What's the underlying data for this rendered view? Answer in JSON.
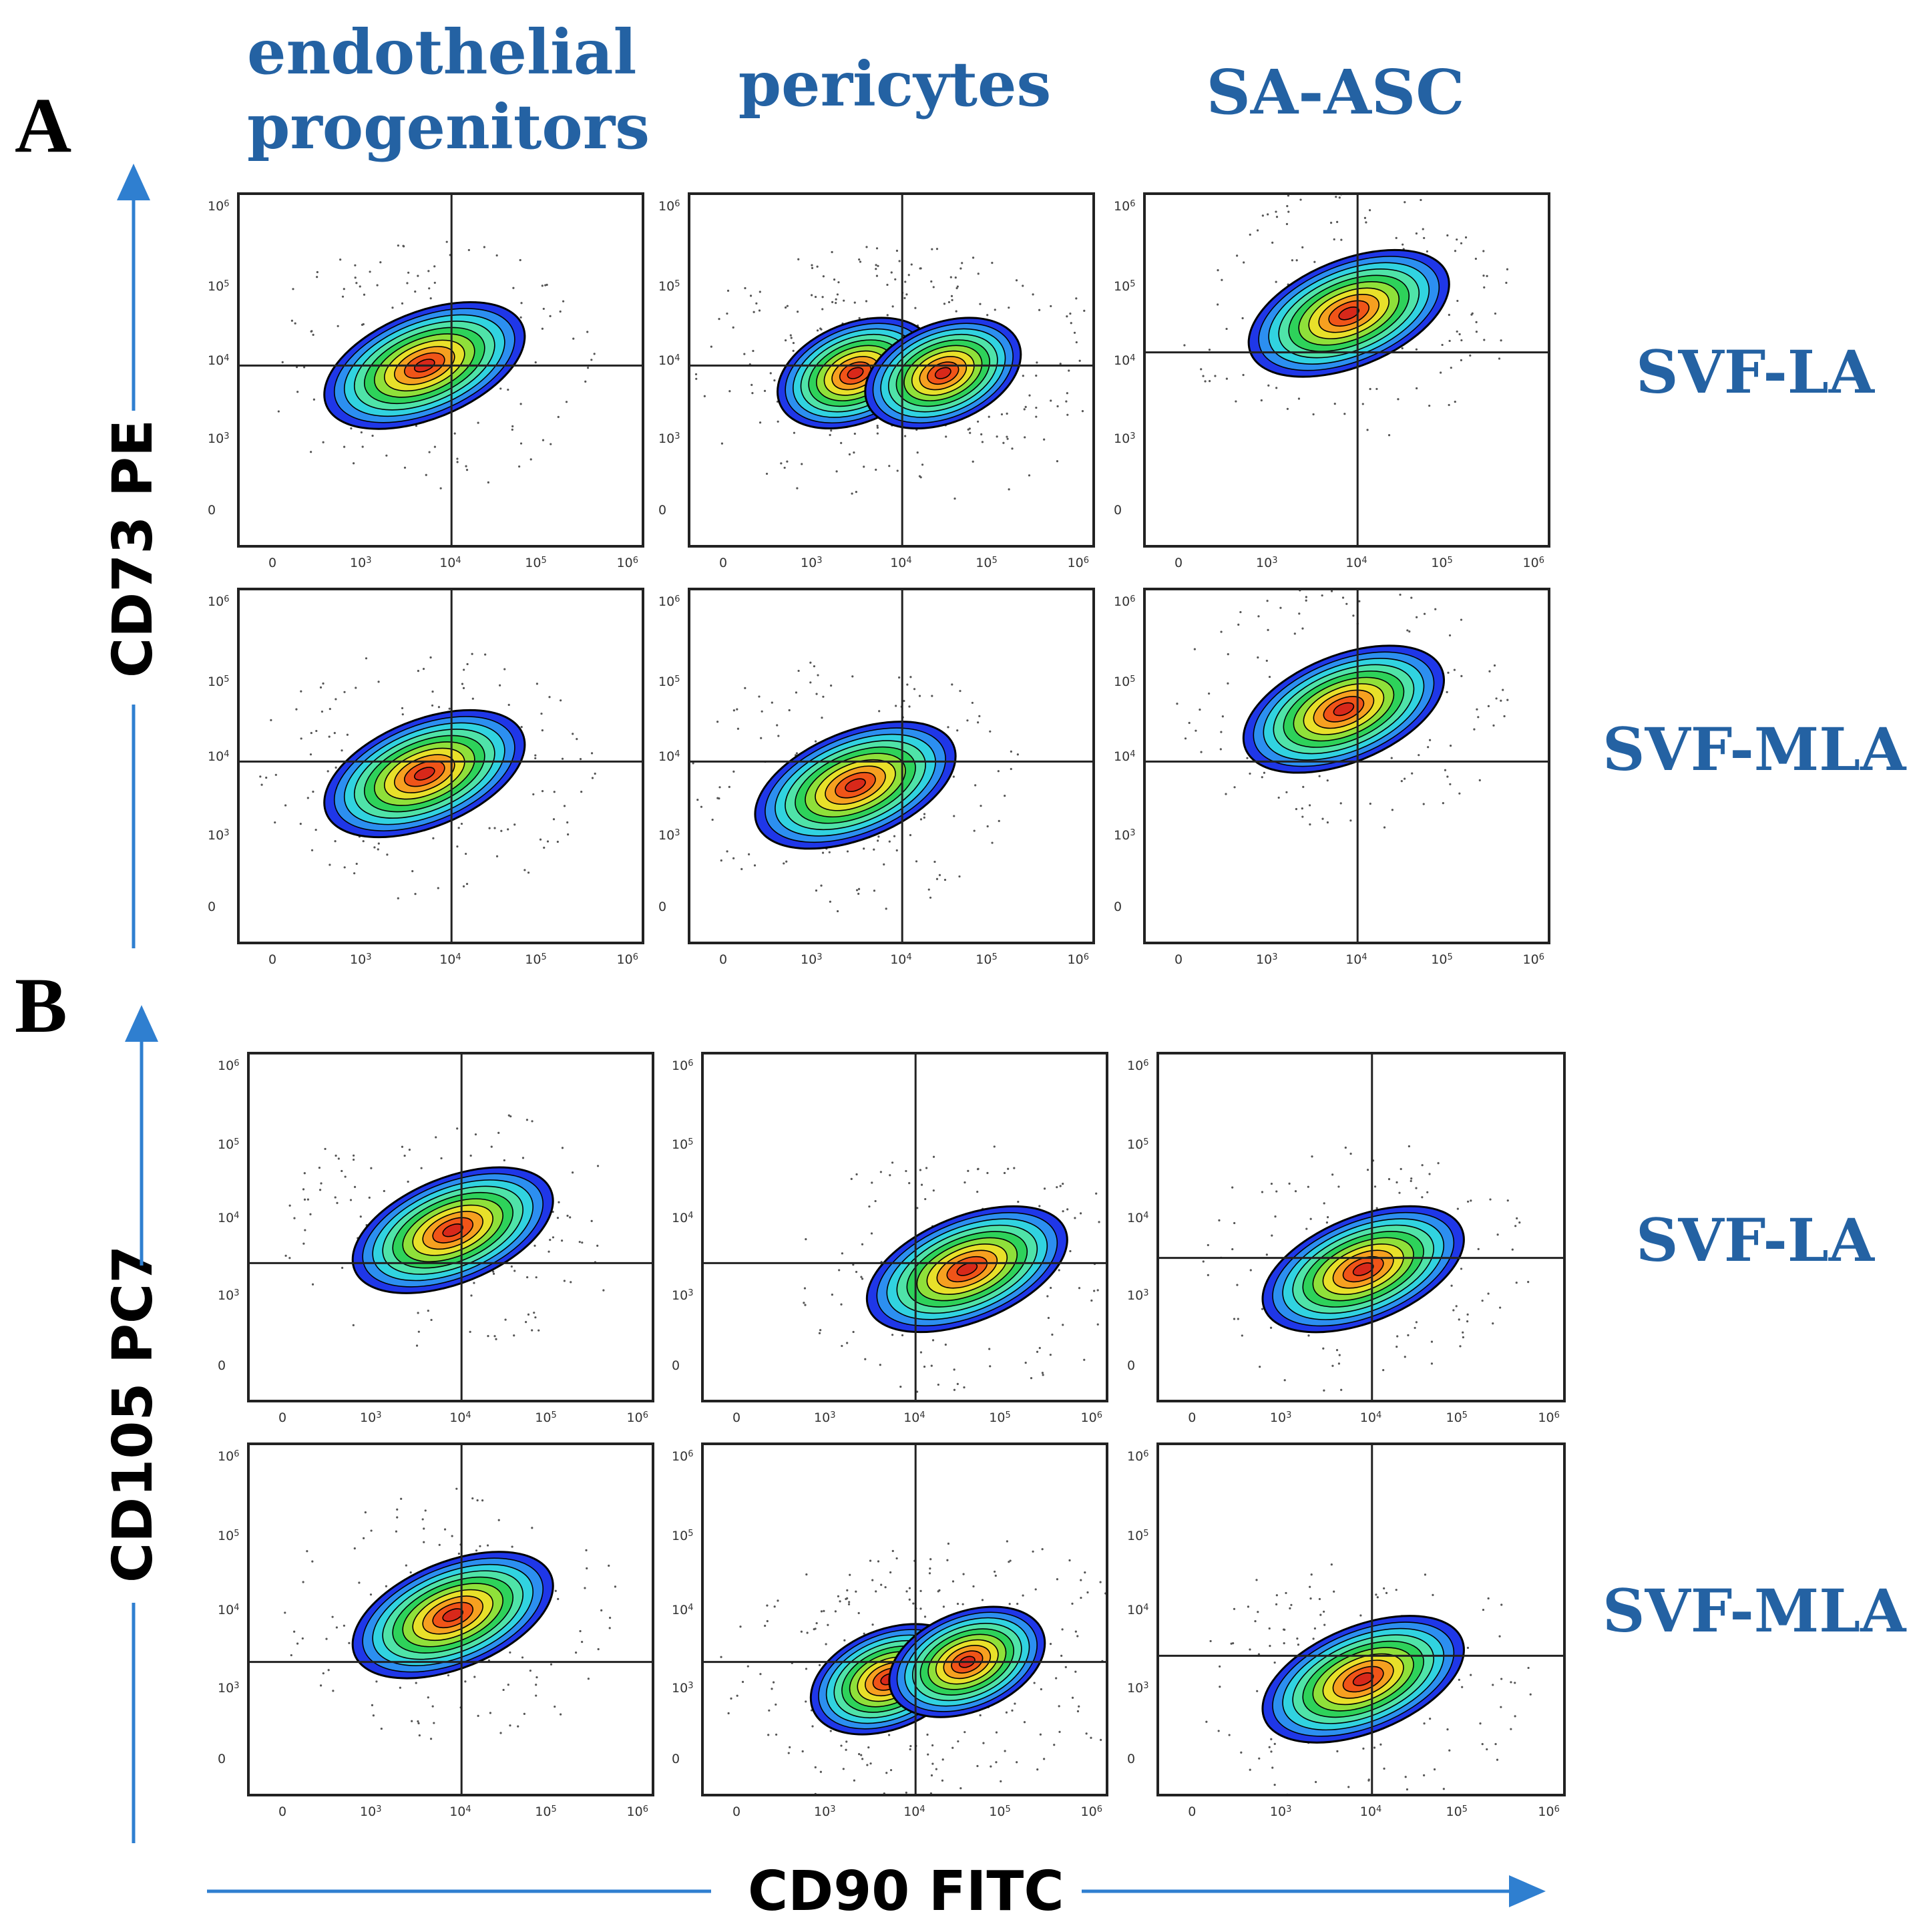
{
  "figure": {
    "panels": [
      "A",
      "B"
    ],
    "column_headers": [
      [
        "endothelial",
        "progenitors"
      ],
      [
        "pericytes"
      ],
      [
        "SA-ASC"
      ]
    ],
    "row_labels": [
      "SVF-LA",
      "SVF-MLA",
      "SVF-LA",
      "SVF-MLA"
    ],
    "x_axis_title": "CD90 FITC",
    "y_axis_titles": [
      "CD73 PE",
      "CD105 PC7"
    ],
    "tick_labels": [
      "0",
      "10^3",
      "10^4",
      "10^5",
      "10^6"
    ],
    "colors": {
      "header_blue": "#2462A3",
      "arrow_blue": "#2F7FD0",
      "contour_levels": [
        "#1F37E8",
        "#2C8FF0",
        "#31D3E0",
        "#4FE3A8",
        "#2ED25A",
        "#8FE03A",
        "#E8E02A",
        "#F6A020",
        "#F05418",
        "#D8281A"
      ]
    }
  },
  "chart_data": [
    {
      "type": "scatter",
      "panel": "A",
      "row": "SVF-LA",
      "column": "endothelial progenitors",
      "ylabel": "CD73 PE",
      "xlabel": "CD90 FITC",
      "scale": "logicle",
      "xlim": [
        "0",
        "10^6"
      ],
      "ylim": [
        "0",
        "10^6"
      ],
      "quadrant_gate": {
        "x": "10^4",
        "y": "10^4"
      },
      "density_peaks": [
        {
          "x": "~5x10^3",
          "y": "~1x10^4"
        }
      ]
    },
    {
      "type": "scatter",
      "panel": "A",
      "row": "SVF-LA",
      "column": "pericytes",
      "ylabel": "CD73 PE",
      "xlabel": "CD90 FITC",
      "scale": "logicle",
      "quadrant_gate": {
        "x": "10^4",
        "y": "10^4"
      },
      "density_peaks": [
        {
          "x": "~3x10^3",
          "y": "~8x10^3"
        },
        {
          "x": "~3x10^4",
          "y": "~8x10^3"
        }
      ]
    },
    {
      "type": "scatter",
      "panel": "A",
      "row": "SVF-LA",
      "column": "SA-ASC",
      "ylabel": "CD73 PE",
      "xlabel": "CD90 FITC",
      "scale": "logicle",
      "quadrant_gate": {
        "x": "10^4",
        "y": "~1.5x10^4"
      },
      "density_peaks": [
        {
          "x": "~8x10^3",
          "y": "~5x10^4"
        }
      ]
    },
    {
      "type": "scatter",
      "panel": "A",
      "row": "SVF-MLA",
      "column": "endothelial progenitors",
      "ylabel": "CD73 PE",
      "xlabel": "CD90 FITC",
      "scale": "logicle",
      "quadrant_gate": {
        "x": "10^4",
        "y": "10^4"
      },
      "density_peaks": [
        {
          "x": "~5x10^3",
          "y": "~7x10^3"
        }
      ]
    },
    {
      "type": "scatter",
      "panel": "A",
      "row": "SVF-MLA",
      "column": "pericytes",
      "ylabel": "CD73 PE",
      "xlabel": "CD90 FITC",
      "scale": "logicle",
      "quadrant_gate": {
        "x": "10^4",
        "y": "10^4"
      },
      "density_peaks": [
        {
          "x": "~3x10^3",
          "y": "~5x10^3"
        }
      ]
    },
    {
      "type": "scatter",
      "panel": "A",
      "row": "SVF-MLA",
      "column": "SA-ASC",
      "ylabel": "CD73 PE",
      "xlabel": "CD90 FITC",
      "scale": "logicle",
      "quadrant_gate": {
        "x": "10^4",
        "y": "10^4"
      },
      "density_peaks": [
        {
          "x": "~7x10^3",
          "y": "~5x10^4"
        }
      ]
    },
    {
      "type": "scatter",
      "panel": "B",
      "row": "SVF-LA",
      "column": "endothelial progenitors",
      "ylabel": "CD105 PC7",
      "xlabel": "CD90 FITC",
      "scale": "logicle",
      "quadrant_gate": {
        "x": "10^4",
        "y": "~3x10^3"
      },
      "density_peaks": [
        {
          "x": "~8x10^3",
          "y": "~8x10^3"
        }
      ]
    },
    {
      "type": "scatter",
      "panel": "B",
      "row": "SVF-LA",
      "column": "pericytes",
      "ylabel": "CD105 PC7",
      "xlabel": "CD90 FITC",
      "scale": "logicle",
      "quadrant_gate": {
        "x": "10^4",
        "y": "~3x10^3"
      },
      "density_peaks": [
        {
          "x": "~4x10^4",
          "y": "~2.5x10^3"
        }
      ]
    },
    {
      "type": "scatter",
      "panel": "B",
      "row": "SVF-LA",
      "column": "SA-ASC",
      "ylabel": "CD105 PC7",
      "xlabel": "CD90 FITC",
      "scale": "logicle",
      "quadrant_gate": {
        "x": "10^4",
        "y": "~3.5x10^3"
      },
      "density_peaks": [
        {
          "x": "~8x10^3",
          "y": "~2.5x10^3"
        }
      ]
    },
    {
      "type": "scatter",
      "panel": "B",
      "row": "SVF-MLA",
      "column": "endothelial progenitors",
      "ylabel": "CD105 PC7",
      "xlabel": "CD90 FITC",
      "scale": "logicle",
      "quadrant_gate": {
        "x": "10^4",
        "y": "~2.5x10^3"
      },
      "density_peaks": [
        {
          "x": "~8x10^3",
          "y": "~1x10^4"
        }
      ]
    },
    {
      "type": "scatter",
      "panel": "B",
      "row": "SVF-MLA",
      "column": "pericytes",
      "ylabel": "CD105 PC7",
      "xlabel": "CD90 FITC",
      "scale": "logicle",
      "quadrant_gate": {
        "x": "10^4",
        "y": "~2.5x10^3"
      },
      "density_peaks": [
        {
          "x": "~5x10^3",
          "y": "~1.5x10^3"
        },
        {
          "x": "~4x10^4",
          "y": "~2.5x10^3"
        }
      ]
    },
    {
      "type": "scatter",
      "panel": "B",
      "row": "SVF-MLA",
      "column": "SA-ASC",
      "ylabel": "CD105 PC7",
      "xlabel": "CD90 FITC",
      "scale": "logicle",
      "quadrant_gate": {
        "x": "10^4",
        "y": "~3x10^3"
      },
      "density_peaks": [
        {
          "x": "~8x10^3",
          "y": "~1.5x10^3"
        }
      ]
    }
  ]
}
